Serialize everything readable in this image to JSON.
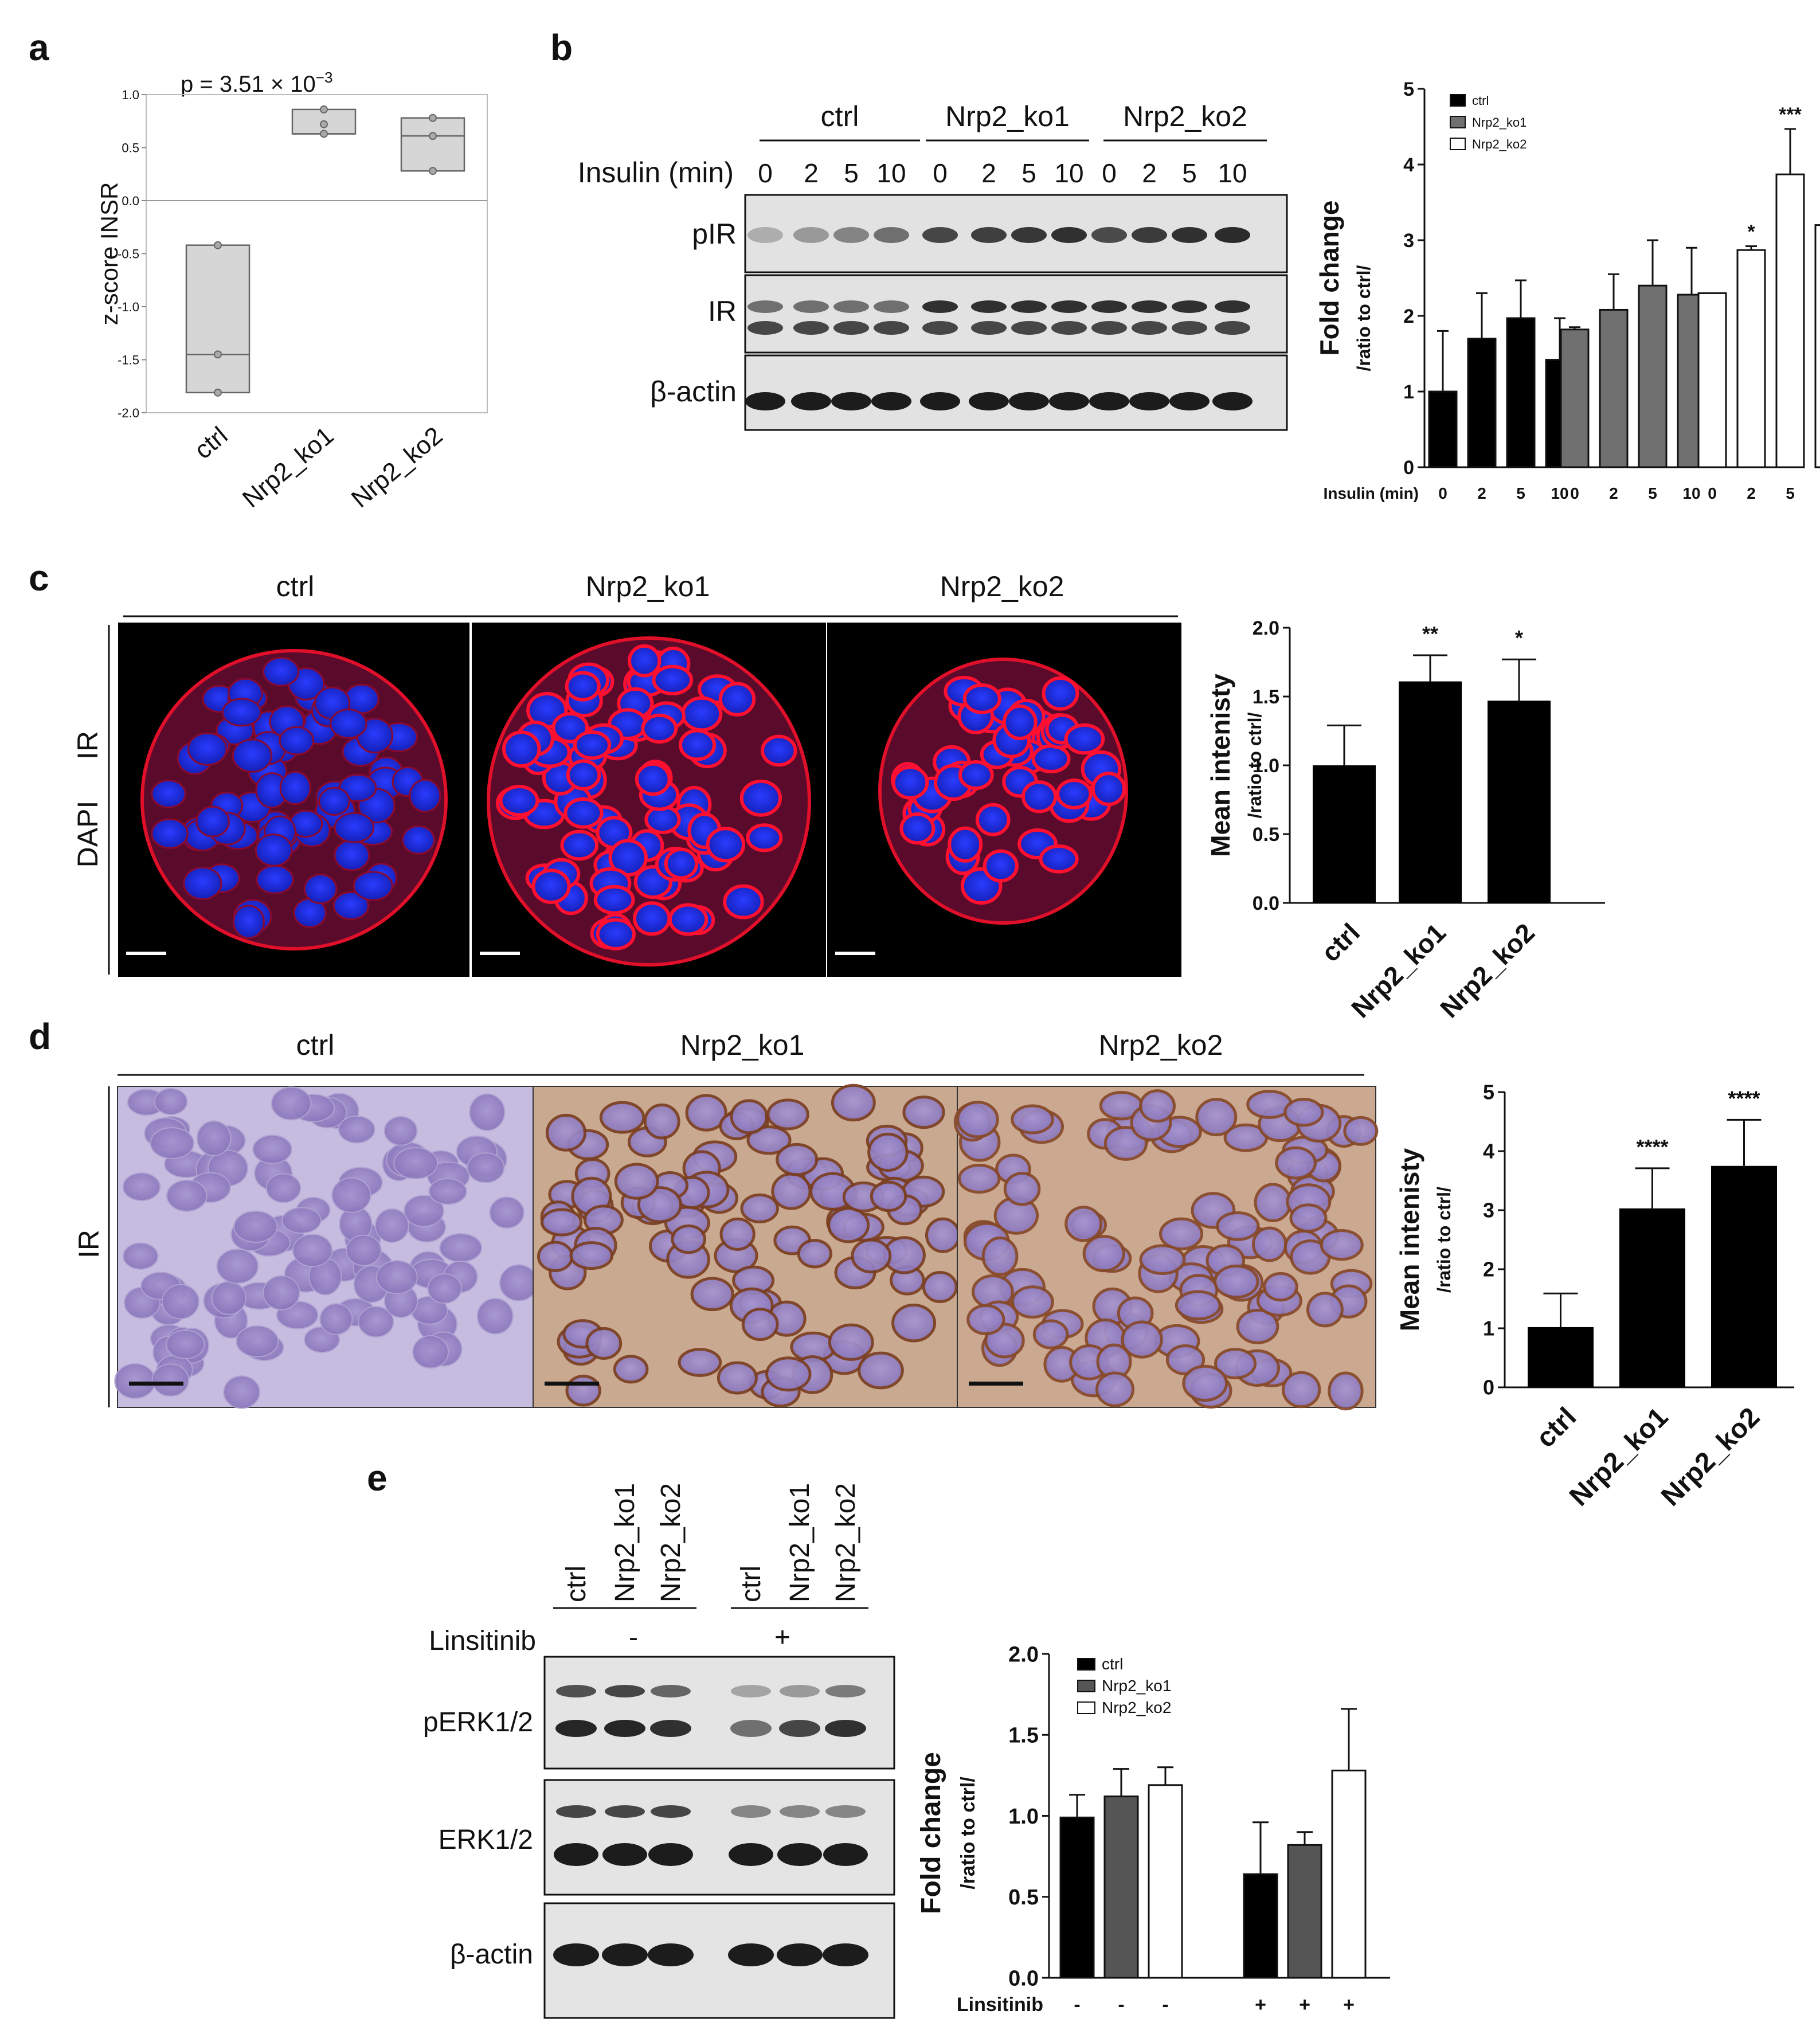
{
  "panels": {
    "a": {
      "label": "a",
      "p_text": "p = 3.51 × 10",
      "p_exp": "−3",
      "chart_data": {
        "type": "box",
        "ylabel": "z-score INSR",
        "categories": [
          "ctrl",
          "Nrp2_ko1",
          "Nrp2_ko2"
        ],
        "ylim": [
          -2.0,
          1.0
        ],
        "yticks": [
          "1.0",
          "0.5",
          "0.0",
          "-0.5",
          "-1.0",
          "-1.5",
          "-2.0"
        ],
        "boxes": [
          {
            "min": -1.81,
            "median": -1.45,
            "max": -0.42,
            "points": [
              -0.42,
              -1.45,
              -1.81
            ]
          },
          {
            "min": 0.63,
            "median": 0.63,
            "max": 0.86,
            "points": [
              0.86,
              0.72,
              0.63
            ]
          },
          {
            "min": 0.28,
            "median": 0.61,
            "max": 0.78,
            "points": [
              0.78,
              0.61,
              0.28
            ]
          }
        ]
      }
    },
    "b": {
      "label": "b",
      "blot": {
        "groups": [
          "ctrl",
          "Nrp2_ko1",
          "Nrp2_ko2"
        ],
        "insulin_label": "Insulin (min)",
        "timepoints": [
          "0",
          "2",
          "5",
          "10"
        ],
        "rows": [
          "pIR",
          "IR",
          "β-actin"
        ]
      },
      "chart_data": {
        "type": "bar",
        "ylabel": "Fold change",
        "ylabel2": "/ratio to ctrl/",
        "xlabel": "Insulin (min)",
        "ylim": [
          0,
          5
        ],
        "yticks": [
          "0",
          "1",
          "2",
          "3",
          "4",
          "5"
        ],
        "categories": [
          "0",
          "2",
          "5",
          "10"
        ],
        "series": [
          {
            "name": "ctrl",
            "color": "#000000",
            "values": [
              1.0,
              1.7,
              1.97,
              1.42
            ],
            "errors": [
              0.8,
              0.6,
              0.5,
              0.55
            ],
            "stars": [
              "",
              "",
              "",
              ""
            ]
          },
          {
            "name": "Nrp2_ko1",
            "color": "#707070",
            "values": [
              1.82,
              2.08,
              2.4,
              2.28
            ],
            "errors": [
              0.03,
              0.47,
              0.6,
              0.62
            ],
            "stars": [
              "",
              "",
              "",
              ""
            ]
          },
          {
            "name": "Nrp2_ko2",
            "color": "#ffffff",
            "values": [
              2.3,
              2.87,
              3.87,
              3.2
            ],
            "errors": [
              0.0,
              0.05,
              0.6,
              0.15
            ],
            "stars": [
              "",
              "*",
              "***",
              "**"
            ]
          }
        ]
      }
    },
    "c": {
      "label": "c",
      "groups": [
        "ctrl",
        "Nrp2_ko1",
        "Nrp2_ko2"
      ],
      "stain_ir": "IR",
      "stain_dapi": "DAPI",
      "chart_data": {
        "type": "bar",
        "ylabel": "Mean  intenisty",
        "ylabel2": "/ratio to ctrl/",
        "ylim": [
          0,
          2.0
        ],
        "yticks": [
          "0.0",
          "0.5",
          "1.0",
          "1.5",
          "2.0"
        ],
        "categories": [
          "ctrl",
          "Nrp2_ko1",
          "Nrp2_ko2"
        ],
        "values": [
          1.0,
          1.61,
          1.47
        ],
        "errors": [
          0.29,
          0.19,
          0.3
        ],
        "stars": [
          "",
          "**",
          "*"
        ]
      }
    },
    "d": {
      "label": "d",
      "groups": [
        "ctrl",
        "Nrp2_ko1",
        "Nrp2_ko2"
      ],
      "stain": "IR",
      "chart_data": {
        "type": "bar",
        "ylabel": "Mean  intenisty",
        "ylabel2": "/ratio to ctrl/",
        "ylim": [
          0,
          5
        ],
        "yticks": [
          "0",
          "1",
          "2",
          "3",
          "4",
          "5"
        ],
        "categories": [
          "ctrl",
          "Nrp2_ko1",
          "Nrp2_ko2"
        ],
        "values": [
          1.02,
          3.03,
          3.75
        ],
        "errors": [
          0.57,
          0.68,
          0.78
        ],
        "stars": [
          "",
          "****",
          "****"
        ]
      }
    },
    "e": {
      "label": "e",
      "blot": {
        "lanes": [
          "ctrl",
          "Nrp2_ko1",
          "Nrp2_ko2",
          "ctrl",
          "Nrp2_ko1",
          "Nrp2_ko2"
        ],
        "linsitinib_label": "Linsitinib",
        "minus": "-",
        "plus": "+",
        "rows": [
          "pERK1/2",
          "ERK1/2",
          "β-actin"
        ]
      },
      "chart_data": {
        "type": "bar",
        "ylabel": "Fold change",
        "ylabel2": "/ratio to ctrl/",
        "xlabel": "Linsitinib",
        "ylim": [
          0,
          2.0
        ],
        "yticks": [
          "0.0",
          "0.5",
          "1.0",
          "1.5",
          "2.0"
        ],
        "groups": [
          "-",
          "+"
        ],
        "series": [
          {
            "name": "ctrl",
            "color": "#000000",
            "values": [
              0.99,
              0.64
            ],
            "errors": [
              0.14,
              0.32
            ]
          },
          {
            "name": "Nrp2_ko1",
            "color": "#555555",
            "values": [
              1.12,
              0.82
            ],
            "errors": [
              0.17,
              0.08
            ]
          },
          {
            "name": "Nrp2_ko2",
            "color": "#ffffff",
            "values": [
              1.19,
              1.28
            ],
            "errors": [
              0.11,
              0.38
            ]
          }
        ],
        "x_signs": [
          "-",
          "-",
          "-",
          "+",
          "+",
          "+"
        ]
      }
    }
  }
}
